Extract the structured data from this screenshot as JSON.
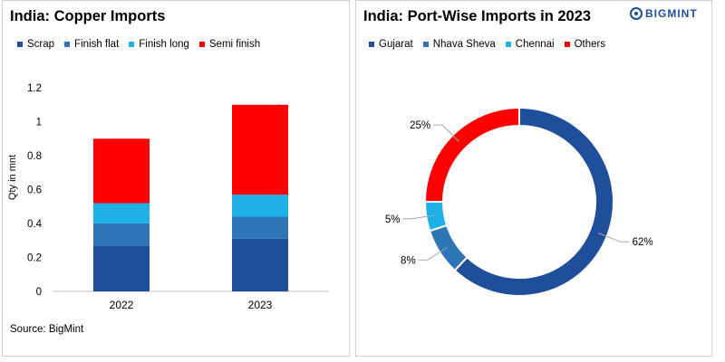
{
  "chart_data": [
    {
      "type": "bar",
      "stacked": true,
      "title": "India: Copper Imports",
      "ylabel": "Qty in mnt",
      "xlabel": "",
      "categories": [
        "2022",
        "2023"
      ],
      "ylim": [
        0,
        1.2
      ],
      "yticks": [
        "0",
        "0.2",
        "0.4",
        "0.6",
        "0.8",
        "1",
        "1.2"
      ],
      "grid": false,
      "legend_position": "top",
      "series": [
        {
          "name": "Scrap",
          "color": "#1f4e9a",
          "values": [
            0.27,
            0.31
          ]
        },
        {
          "name": "Finish flat",
          "color": "#2e75b6",
          "values": [
            0.13,
            0.13
          ]
        },
        {
          "name": "Finish long",
          "color": "#1fb0e8",
          "values": [
            0.12,
            0.13
          ]
        },
        {
          "name": "Semi finish",
          "color": "#ff0000",
          "values": [
            0.38,
            0.53
          ]
        }
      ],
      "source": "Source:  BigMint"
    },
    {
      "type": "pie",
      "donut": true,
      "title": "India: Port-Wise Imports in 2023",
      "legend_position": "top",
      "slices": [
        {
          "name": "Gujarat",
          "value": 62,
          "label": "62%",
          "color": "#1f4e9a"
        },
        {
          "name": "Nhava Sheva",
          "value": 8,
          "label": "8%",
          "color": "#2e75b6"
        },
        {
          "name": "Chennai",
          "value": 5,
          "label": "5%",
          "color": "#1fb0e8"
        },
        {
          "name": "Others",
          "value": 25,
          "label": "25%",
          "color": "#ff0000"
        }
      ]
    }
  ],
  "brand": {
    "logo_text": "BIGMINT",
    "color": "#1f4e9a"
  }
}
